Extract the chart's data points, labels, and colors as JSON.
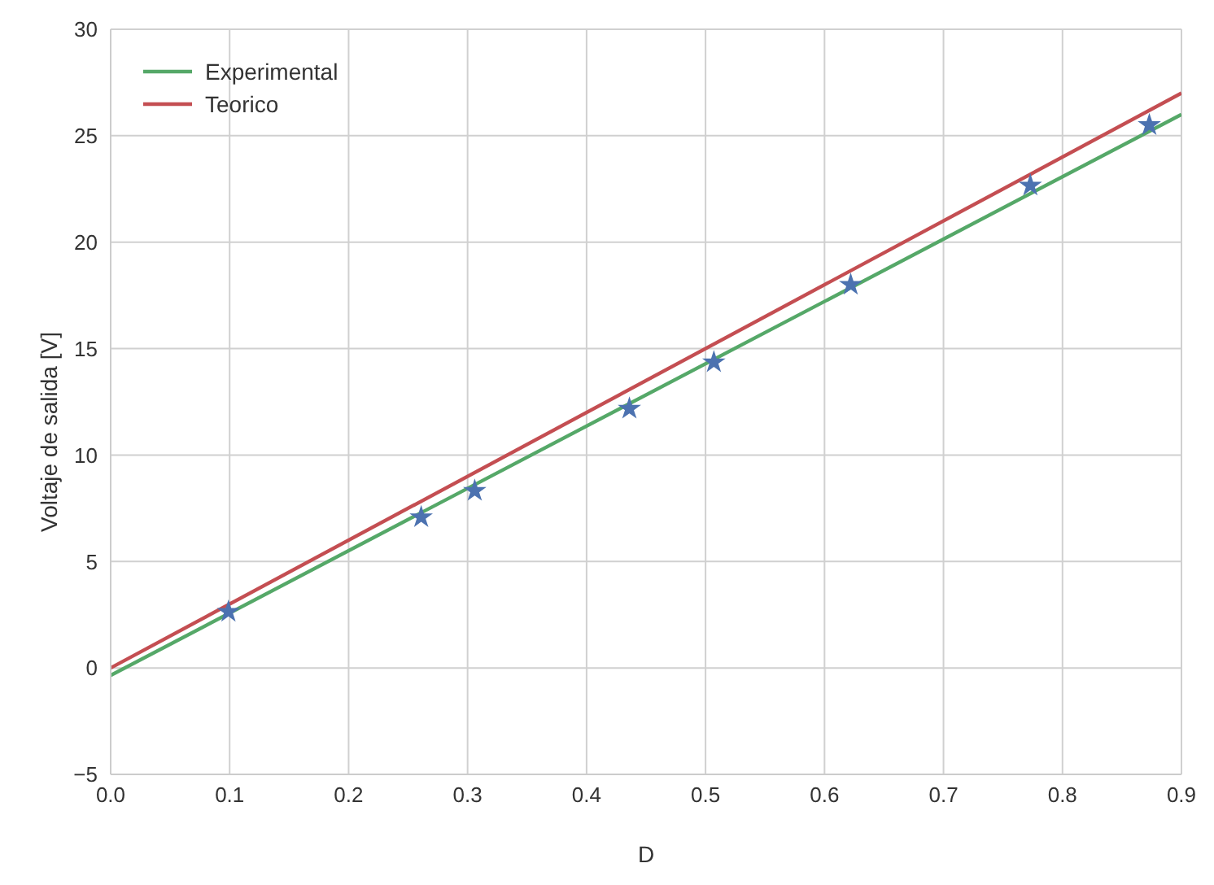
{
  "chart_data": {
    "type": "line",
    "xlabel": "D",
    "ylabel": "Voltaje de salida [V]",
    "xlim": [
      0,
      0.9
    ],
    "xticks": [
      {
        "value": 0,
        "label": "0.0"
      },
      0.1,
      0.2,
      0.3,
      0.4,
      0.5,
      0.6,
      0.7,
      0.8,
      0.9
    ],
    "ylim": [
      -5,
      30
    ],
    "yticks": [
      {
        "value": -5,
        "label": "−5"
      },
      0,
      5,
      10,
      15,
      20,
      25,
      30
    ],
    "grid": true,
    "legend": "top left",
    "series": [
      {
        "type": "scatter",
        "color": "#4c72b0",
        "marker": "star",
        "x": [
          0.099,
          0.261,
          0.306,
          0.436,
          0.507,
          0.622,
          0.773,
          0.873
        ],
        "values": [
          2.64,
          7.08,
          8.32,
          12.18,
          14.36,
          18.0,
          22.66,
          25.5
        ]
      },
      {
        "name": "Experimental",
        "color": "#55a868",
        "marker": "none",
        "x": [
          0,
          0.9
        ],
        "values": [
          -0.35,
          26.0
        ]
      },
      {
        "name": "Teorico",
        "color": "#c44e52",
        "marker": "none",
        "x": [
          0,
          0.9
        ],
        "values": [
          0,
          27
        ]
      }
    ]
  }
}
